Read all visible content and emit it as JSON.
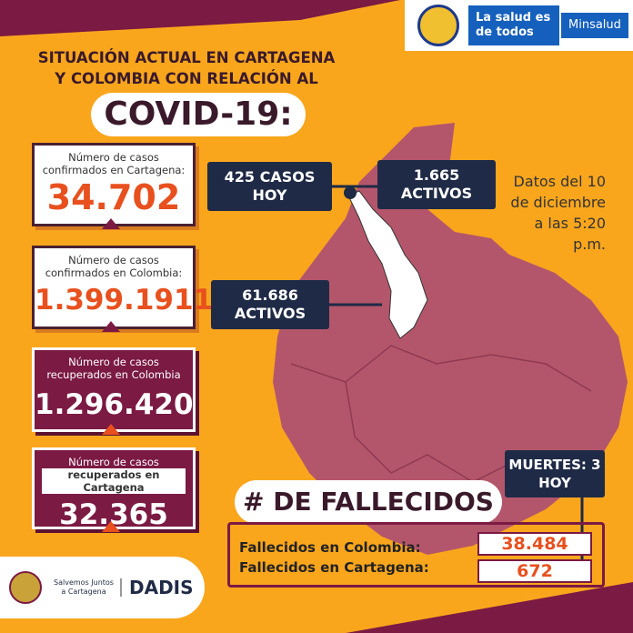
{
  "header": {
    "slogan": "La salud es de todos",
    "ministry": "Minsalud"
  },
  "title": {
    "lines": [
      "SITUACIÓN ACTUAL EN CARTAGENA",
      "Y COLOMBIA CON RELACIÓN AL"
    ],
    "main": "COVID-19:"
  },
  "confirmed_cartagena": {
    "label": "Número de casos confirmados en Cartagena:",
    "value": "34.702"
  },
  "today_cases": "425 CASOS HOY",
  "active_cartagena": "1.665 ACTIVOS",
  "date_note": "Datos del 10 de diciembre a las 5:20 p.m.",
  "confirmed_colombia": {
    "label": "Número de casos confirmados en Colombia:",
    "value": "1.399.1911"
  },
  "active_colombia": "61.686 ACTIVOS",
  "recovered_colombia": {
    "label": "Número de casos recuperados en Colombia",
    "value": "1.296.420"
  },
  "recovered_cartagena": {
    "label_top": "Número de casos",
    "label_bottom": "recuperados en Cartagena",
    "value": "32.365"
  },
  "deaths_today": "MUERTES: 3 HOY",
  "deaths": {
    "heading": "# DE FALLECIDOS",
    "rows": [
      {
        "label": "Fallecidos en Colombia:",
        "value": "38.484"
      },
      {
        "label": "Fallecidos en Cartagena:",
        "value": "672"
      }
    ]
  },
  "footer": {
    "campaign": "Salvemos Juntos a Cartagena",
    "agency": "DADIS"
  }
}
